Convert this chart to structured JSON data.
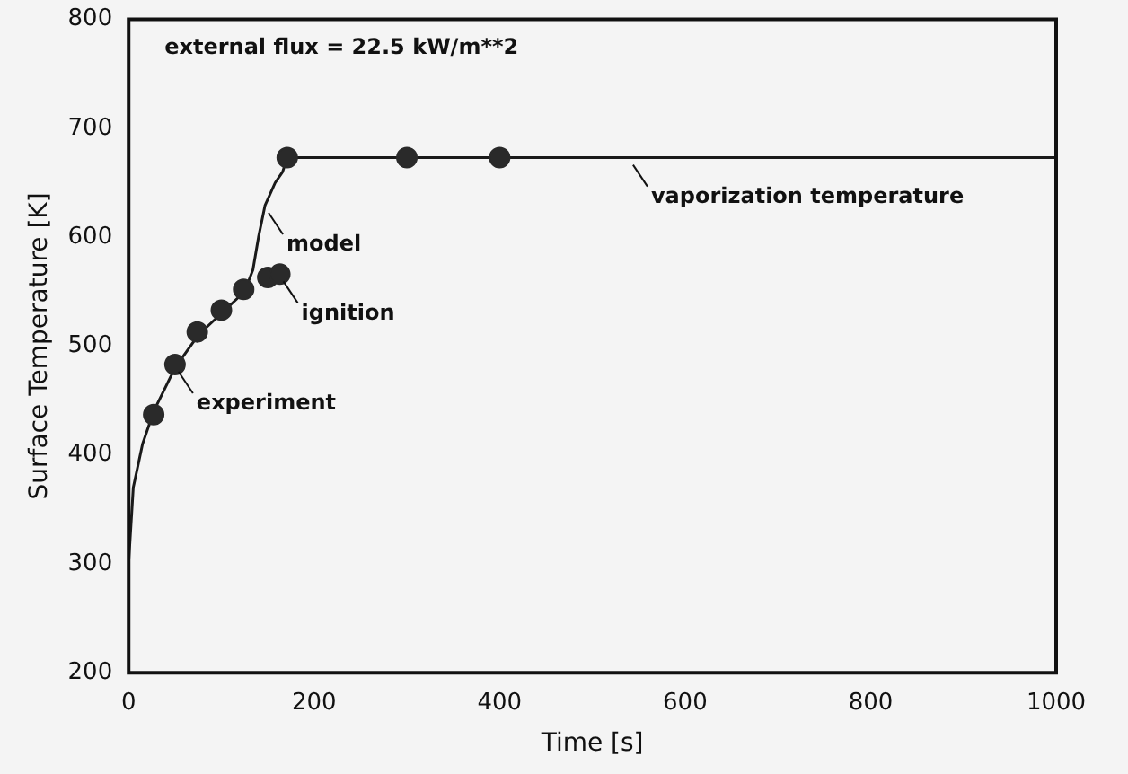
{
  "chart_data": {
    "type": "scatter",
    "xlabel": "Time [s]",
    "ylabel": "Surface Temperature [K]",
    "xlim": [
      0,
      1000
    ],
    "xticks": [
      0,
      200,
      400,
      600,
      800,
      1000
    ],
    "ylim": [
      200,
      800
    ],
    "yticks": [
      200,
      300,
      400,
      500,
      600,
      700,
      800
    ],
    "grid": false,
    "legend": false,
    "series": [
      {
        "marker": "circle",
        "color": "#2a2a2a",
        "x": [
          27,
          50,
          74,
          100,
          124,
          150,
          163,
          171,
          300,
          400
        ],
        "values": [
          437,
          483,
          513,
          533,
          552,
          563,
          566,
          673,
          673,
          673
        ]
      },
      {
        "type": "line",
        "marker": "none",
        "line_style": "solid",
        "color": "#1a1a1a",
        "x": [
          0,
          5,
          15,
          27,
          50,
          75,
          100,
          125,
          134,
          140,
          147,
          158,
          166,
          171,
          1000
        ],
        "values": [
          300,
          370,
          410,
          440,
          480,
          510,
          530,
          550,
          570,
          600,
          629,
          650,
          660,
          673,
          673
        ]
      }
    ],
    "annotations": [
      "external flux = 22.5 kW/m**2",
      {
        "text": "experiment",
        "x": 50,
        "y": 483
      },
      {
        "text": "ignition",
        "x": 163,
        "y": 566
      },
      {
        "text": "model",
        "x": 147,
        "y": 629
      },
      {
        "text": "vaporization temperature",
        "x": 540,
        "y": 673
      }
    ]
  }
}
